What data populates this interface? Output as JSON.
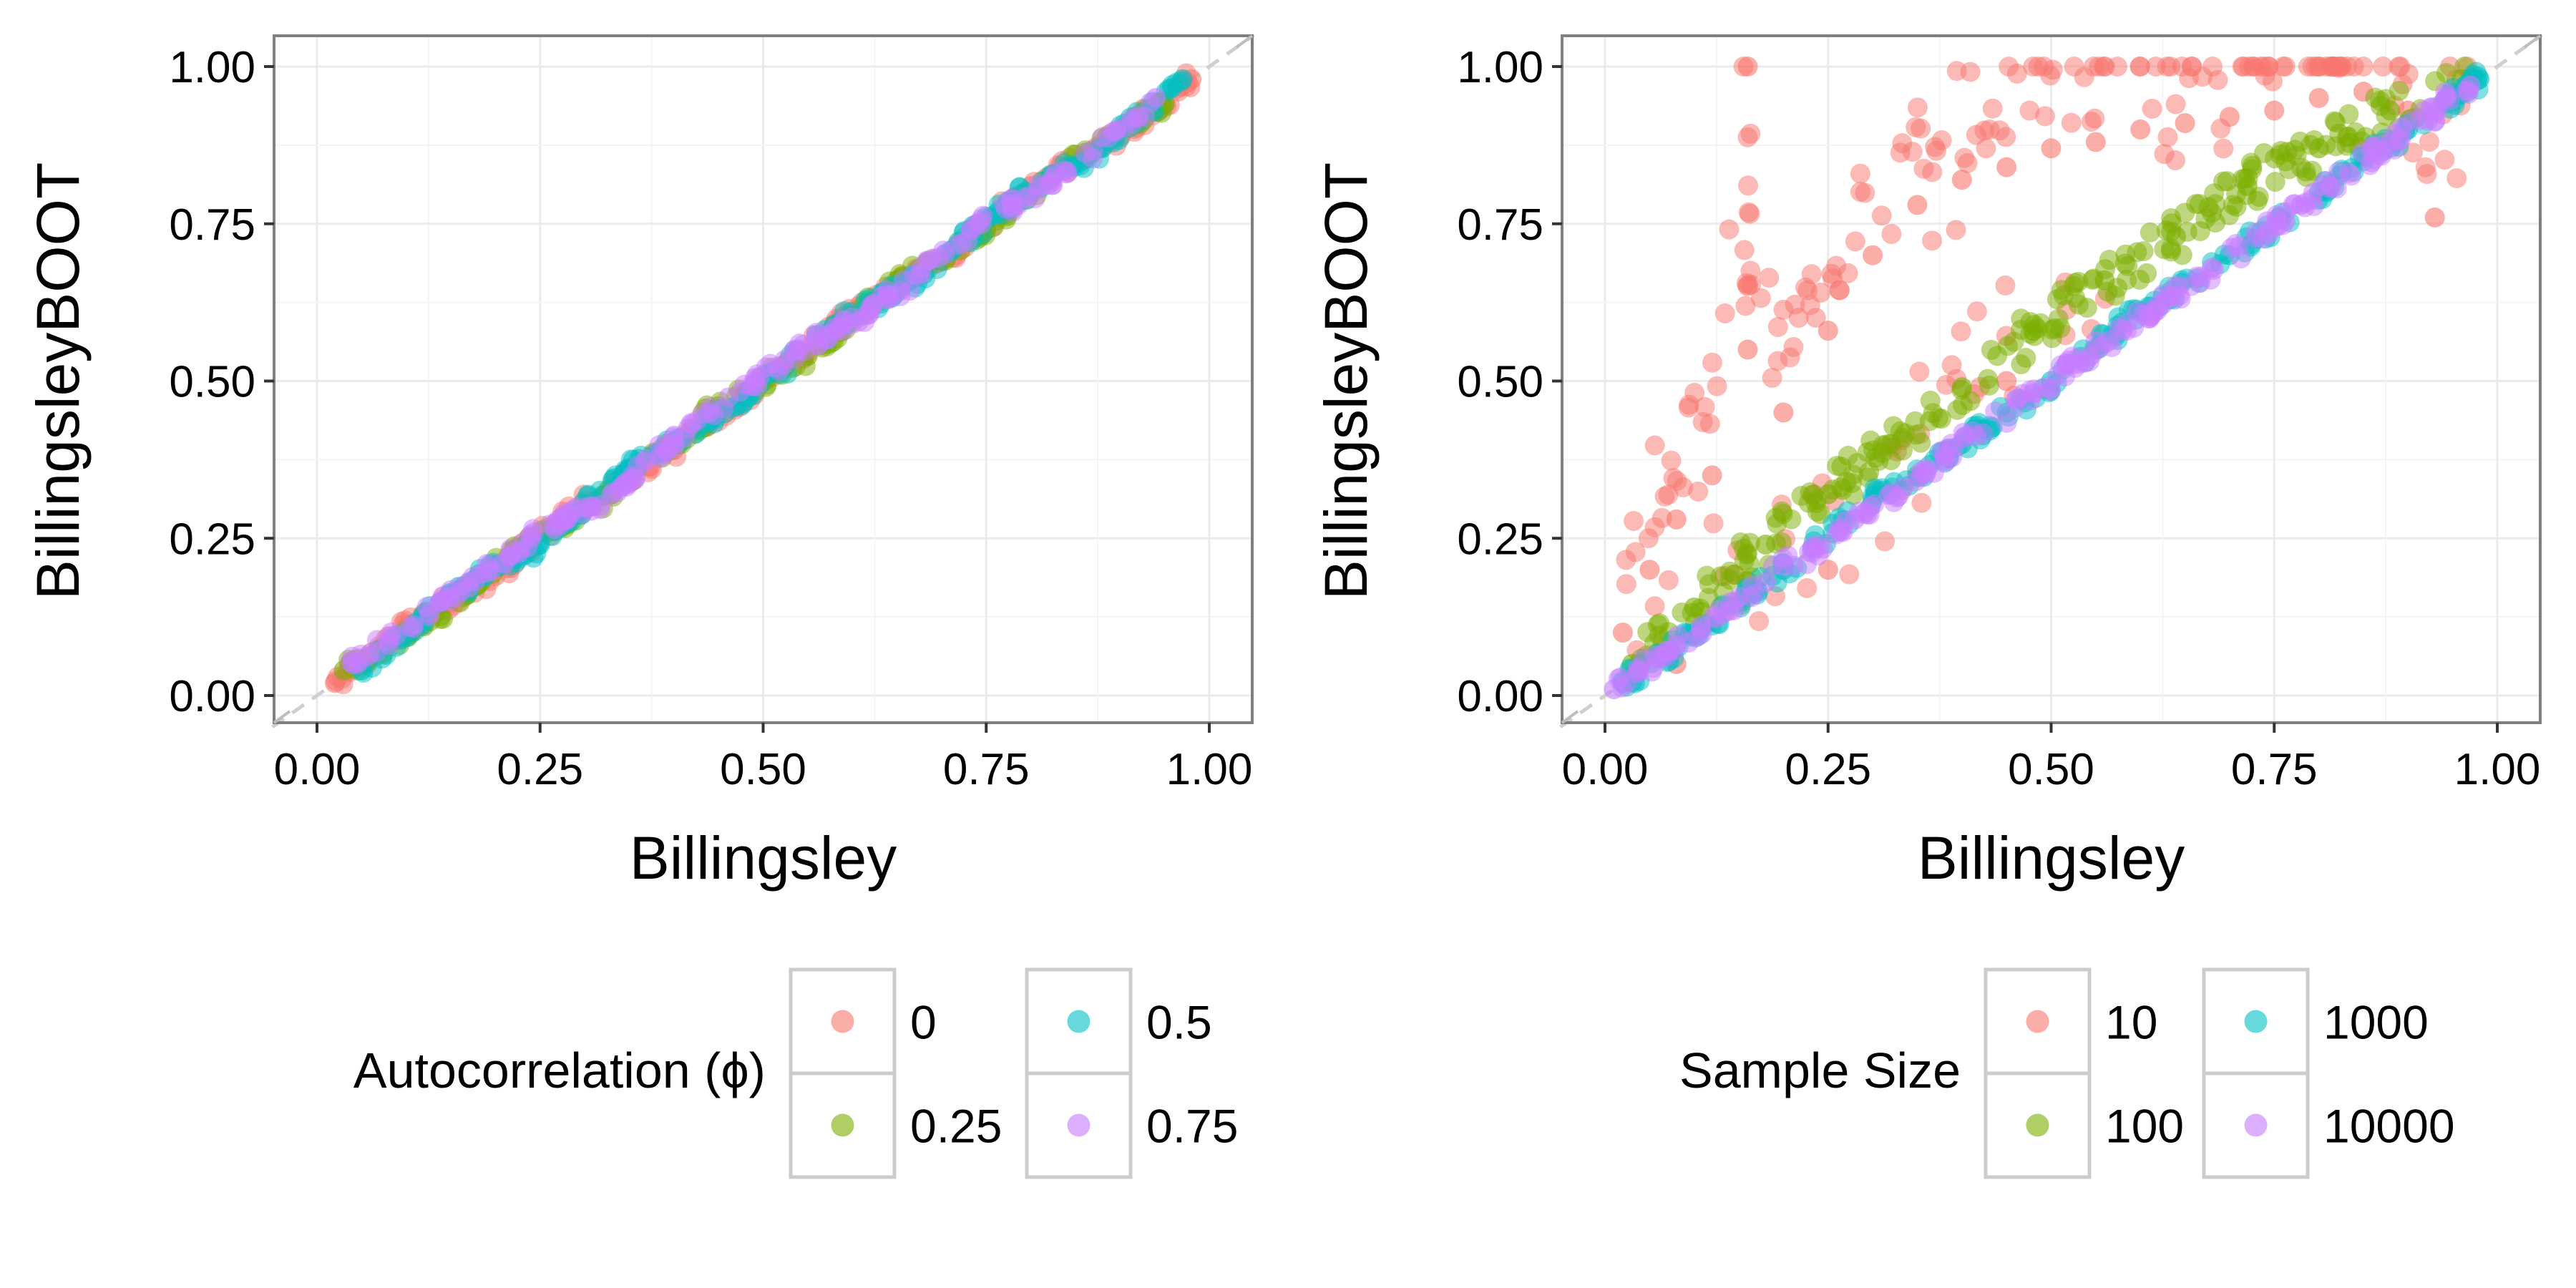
{
  "chart_data": [
    {
      "type": "scatter",
      "xlabel": "Billingsley",
      "ylabel": "BillingsleyBOOT",
      "xlim": [
        0,
        1
      ],
      "ylim": [
        0,
        1
      ],
      "x_ticks": [
        "0.00",
        "0.25",
        "0.50",
        "0.75",
        "1.00"
      ],
      "y_ticks": [
        "0.00",
        "0.25",
        "0.50",
        "0.75",
        "1.00"
      ],
      "grid": true,
      "reference_line": {
        "slope": 1,
        "intercept": 0,
        "style": "dashed"
      },
      "legend": {
        "title": "Autocorrelation (ϕ)",
        "placement": "bottom",
        "entries": [
          {
            "label": "0",
            "color": "#F8766D"
          },
          {
            "label": "0.25",
            "color": "#7CAE00"
          },
          {
            "label": "0.5",
            "color": "#00BFC4"
          },
          {
            "label": "0.75",
            "color": "#C77CFF"
          }
        ]
      },
      "series": [
        {
          "key": "0",
          "color": "#F8766D",
          "x": [
            0.02,
            0.1,
            0.2,
            0.3,
            0.4,
            0.5,
            0.6,
            0.7,
            0.8,
            0.9,
            0.98
          ],
          "y": [
            0.02,
            0.11,
            0.19,
            0.31,
            0.39,
            0.5,
            0.61,
            0.69,
            0.81,
            0.89,
            0.98
          ]
        },
        {
          "key": "0.25",
          "color": "#7CAE00",
          "x": [
            0.03,
            0.12,
            0.22,
            0.33,
            0.45,
            0.55,
            0.65,
            0.75,
            0.85,
            0.95
          ],
          "y": [
            0.04,
            0.11,
            0.23,
            0.32,
            0.46,
            0.54,
            0.66,
            0.74,
            0.86,
            0.94
          ]
        },
        {
          "key": "0.5",
          "color": "#00BFC4",
          "x": [
            0.05,
            0.15,
            0.25,
            0.35,
            0.47,
            0.58,
            0.68,
            0.78,
            0.88,
            0.97
          ],
          "y": [
            0.04,
            0.16,
            0.24,
            0.36,
            0.46,
            0.59,
            0.67,
            0.79,
            0.87,
            0.98
          ]
        },
        {
          "key": "0.75",
          "color": "#C77CFF",
          "x": [
            0.04,
            0.14,
            0.24,
            0.34,
            0.44,
            0.54,
            0.64,
            0.74,
            0.84,
            0.94
          ],
          "y": [
            0.05,
            0.15,
            0.25,
            0.33,
            0.45,
            0.55,
            0.63,
            0.75,
            0.83,
            0.95
          ]
        }
      ]
    },
    {
      "type": "scatter",
      "xlabel": "Billingsley",
      "ylabel": "BillingsleyBOOT",
      "xlim": [
        0,
        1
      ],
      "ylim": [
        0,
        1
      ],
      "x_ticks": [
        "0.00",
        "0.25",
        "0.50",
        "0.75",
        "1.00"
      ],
      "y_ticks": [
        "0.00",
        "0.25",
        "0.50",
        "0.75",
        "1.00"
      ],
      "grid": true,
      "reference_line": {
        "slope": 1,
        "intercept": 0,
        "style": "dashed"
      },
      "legend": {
        "title": "Sample Size",
        "placement": "bottom",
        "entries": [
          {
            "label": "10",
            "color": "#F8766D"
          },
          {
            "label": "100",
            "color": "#7CAE00"
          },
          {
            "label": "1000",
            "color": "#00BFC4"
          },
          {
            "label": "10000",
            "color": "#C77CFF"
          }
        ]
      },
      "series": [
        {
          "key": "10",
          "color": "#F8766D",
          "x": [
            0.02,
            0.05,
            0.08,
            0.12,
            0.16,
            0.16,
            0.2,
            0.25,
            0.3,
            0.35,
            0.4,
            0.45,
            0.5,
            0.55,
            0.6,
            0.65,
            0.7,
            0.75,
            0.8,
            0.85,
            0.9,
            0.93,
            0.97,
            0.08,
            0.15,
            0.25,
            0.35,
            0.45,
            0.55
          ],
          "y": [
            0.1,
            0.2,
            0.28,
            0.35,
            1.0,
            0.55,
            0.45,
            0.58,
            0.7,
            0.78,
            0.82,
            0.84,
            0.87,
            0.88,
            0.9,
            0.91,
            0.92,
            0.93,
            0.95,
            0.96,
            0.93,
            0.76,
            0.98,
            0.05,
            0.15,
            0.2,
            0.35,
            0.5,
            0.55
          ]
        },
        {
          "key": "100",
          "color": "#7CAE00",
          "x": [
            0.03,
            0.1,
            0.18,
            0.25,
            0.32,
            0.4,
            0.48,
            0.56,
            0.64,
            0.72,
            0.8,
            0.88,
            0.96
          ],
          "y": [
            0.05,
            0.14,
            0.24,
            0.32,
            0.4,
            0.49,
            0.58,
            0.66,
            0.73,
            0.81,
            0.87,
            0.93,
            0.98
          ]
        },
        {
          "key": "1000",
          "color": "#00BFC4",
          "x": [
            0.02,
            0.1,
            0.2,
            0.3,
            0.4,
            0.5,
            0.6,
            0.7,
            0.8,
            0.9,
            0.98
          ],
          "y": [
            0.02,
            0.1,
            0.2,
            0.31,
            0.4,
            0.5,
            0.61,
            0.7,
            0.8,
            0.9,
            0.98
          ]
        },
        {
          "key": "10000",
          "color": "#C77CFF",
          "x": [
            0.01,
            0.08,
            0.18,
            0.28,
            0.38,
            0.48,
            0.58,
            0.68,
            0.78,
            0.88,
            0.97
          ],
          "y": [
            0.01,
            0.08,
            0.18,
            0.28,
            0.38,
            0.48,
            0.58,
            0.68,
            0.78,
            0.88,
            0.97
          ]
        }
      ]
    }
  ]
}
